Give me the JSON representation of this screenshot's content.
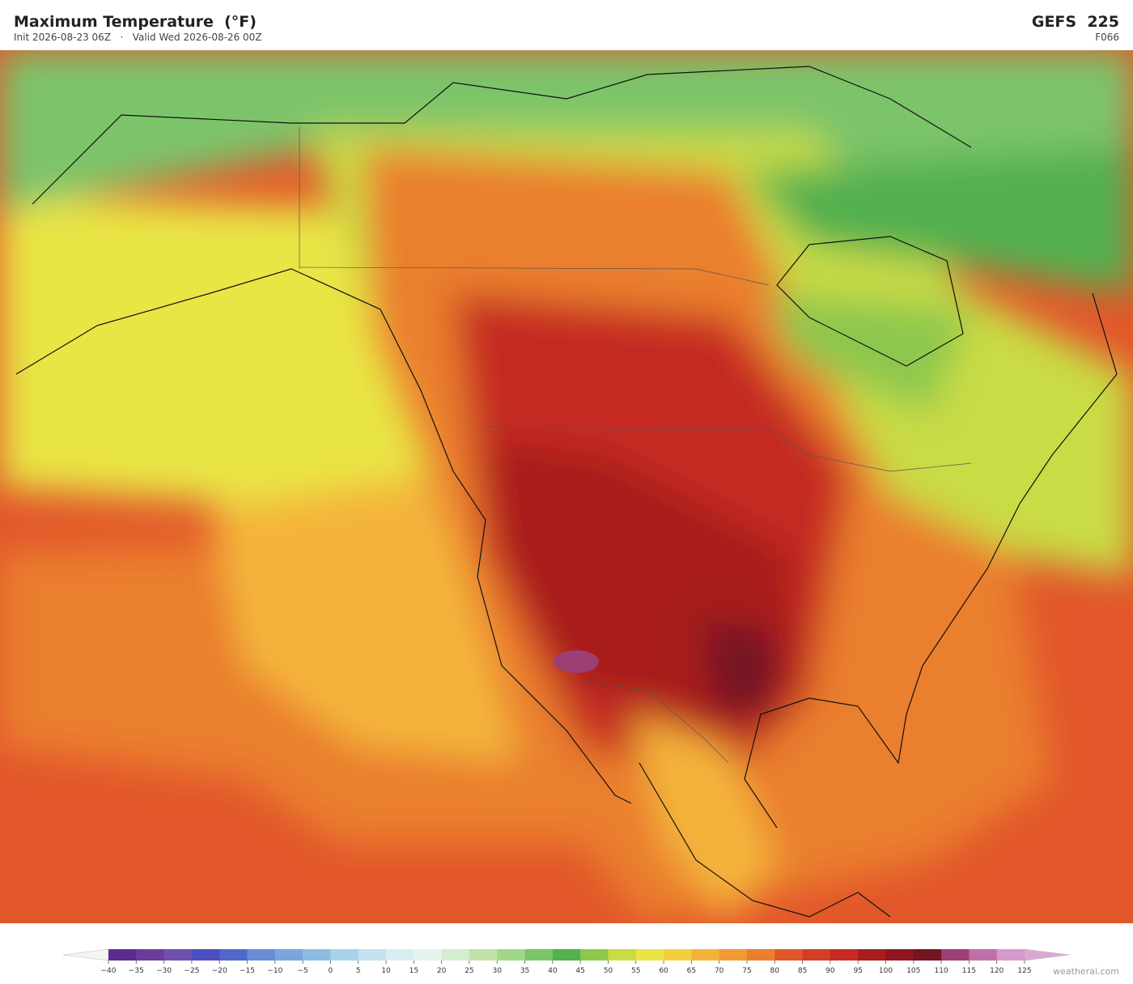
{
  "header": {
    "title": "Maximum Temperature  (°F)",
    "subtitle": "Init 2026-08-23 06Z   ·   Valid Wed 2026-08-26 00Z",
    "model": "GEFS  225",
    "forecast_hour": "F066"
  },
  "colorbar": {
    "ticks": [
      {
        "value": -40,
        "label": "−40"
      },
      {
        "value": -35,
        "label": "−35"
      },
      {
        "value": -30,
        "label": "−30"
      },
      {
        "value": -25,
        "label": "−25"
      },
      {
        "value": -20,
        "label": "−20"
      },
      {
        "value": -15,
        "label": "−15"
      },
      {
        "value": -10,
        "label": "−10"
      },
      {
        "value": -5,
        "label": "−5"
      },
      0,
      5,
      10,
      15,
      20,
      25,
      30,
      35,
      40,
      45,
      50,
      55,
      60,
      65,
      70,
      75,
      80,
      85,
      90,
      95,
      100,
      105,
      110,
      115,
      120,
      125
    ],
    "colors": [
      "#5b2c8f",
      "#6a3d9a",
      "#6f4fb0",
      "#4c4fc0",
      "#5068cc",
      "#6a8cd4",
      "#7aa6dc",
      "#8dbde2",
      "#a6d3ea",
      "#c2e2ef",
      "#d8eef2",
      "#e6f4ec",
      "#d4ecd0",
      "#bfe3a8",
      "#a2d68a",
      "#7cc46a",
      "#52b04f",
      "#8dc74d",
      "#c9db45",
      "#e9e545",
      "#f3cf3f",
      "#f4b43a",
      "#f19a35",
      "#ea7f2f",
      "#e2572a",
      "#d43e25",
      "#c52b22",
      "#a81d1d",
      "#8e1620",
      "#731522",
      "#9d3f74",
      "#c070a8",
      "#d49acb"
    ],
    "extend_low_color": "#f4f4f4",
    "extend_high_color": "#dba8d6"
  },
  "footer": {
    "credit": "weatherai.com"
  }
}
